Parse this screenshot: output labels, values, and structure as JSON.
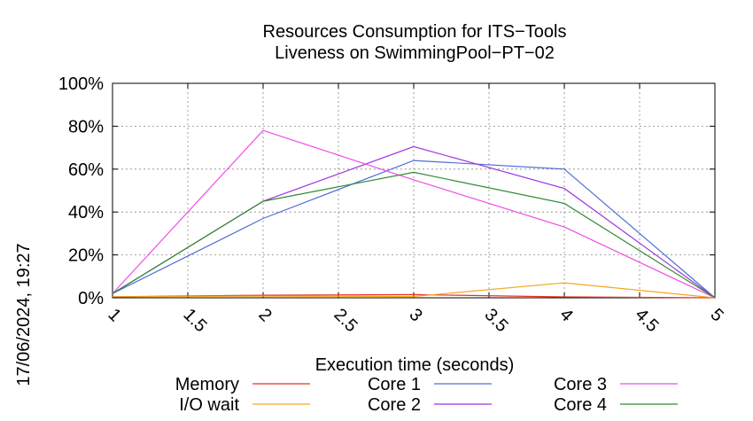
{
  "chart_data": {
    "type": "line",
    "title": "Resources Consumption for ITS−Tools",
    "subtitle": "Liveness on SwimmingPool−PT−02",
    "xlabel": "Execution time (seconds)",
    "ylabel": "",
    "timestamp": "17/06/2024, 19:27",
    "xlim": [
      1,
      5
    ],
    "ylim": [
      0,
      100
    ],
    "x_ticks": [
      1,
      1.5,
      2,
      2.5,
      3,
      3.5,
      4,
      4.5,
      5
    ],
    "x_tick_labels": [
      "1",
      "1.5",
      "2",
      "2.5",
      "3",
      "3.5",
      "4",
      "4.5",
      "5"
    ],
    "y_ticks": [
      0,
      20,
      40,
      60,
      80,
      100
    ],
    "y_tick_labels": [
      "0%",
      "20%",
      "40%",
      "60%",
      "80%",
      "100%"
    ],
    "grid": true,
    "legend_position": "bottom",
    "x": [
      1,
      2,
      3,
      4,
      5
    ],
    "series": [
      {
        "name": "Memory",
        "color": "#e8321e",
        "values": [
          0.5,
          1.2,
          1.5,
          0.4,
          0
        ]
      },
      {
        "name": "I/O wait",
        "color": "#f5a623",
        "values": [
          0.5,
          0.8,
          0.6,
          7,
          0
        ]
      },
      {
        "name": "Core 1",
        "color": "#4f6fd6",
        "values": [
          2,
          37,
          64,
          60,
          0
        ]
      },
      {
        "name": "Core 2",
        "color": "#9d34e0",
        "values": [
          2,
          45,
          70.5,
          51,
          0
        ]
      },
      {
        "name": "Core 3",
        "color": "#f04ce8",
        "values": [
          2,
          78,
          55,
          33,
          0
        ]
      },
      {
        "name": "Core 4",
        "color": "#2e8b2e",
        "values": [
          2,
          45,
          58.5,
          44,
          0
        ]
      }
    ]
  }
}
